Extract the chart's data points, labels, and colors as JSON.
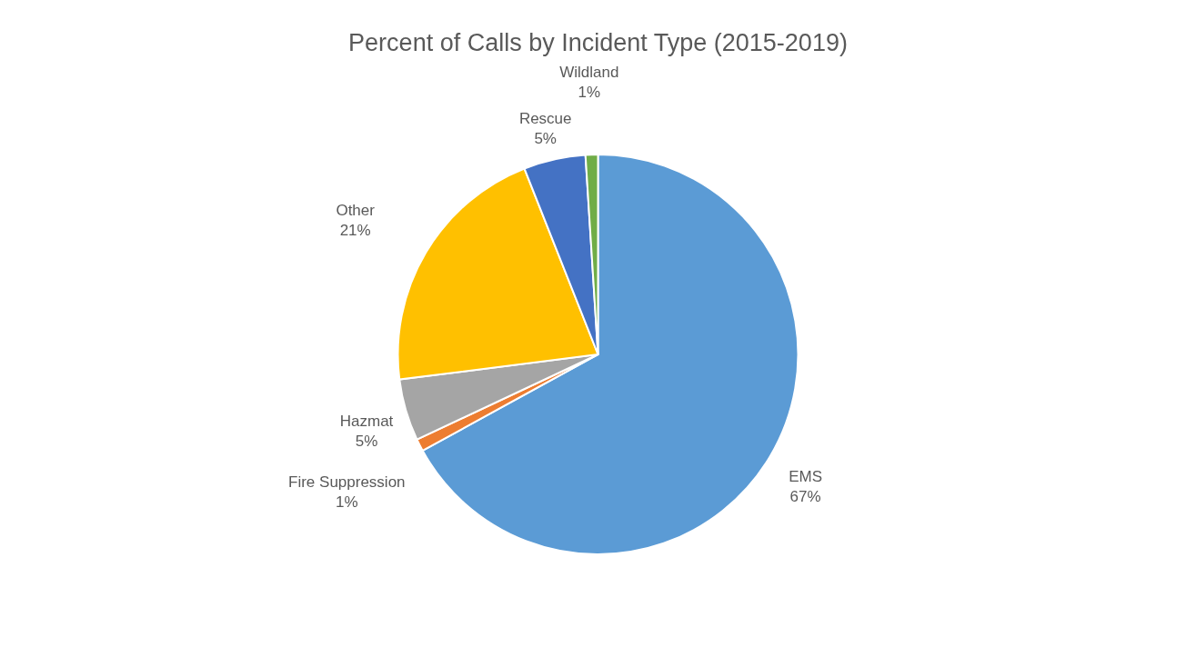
{
  "chart_data": {
    "type": "pie",
    "title": "Percent of Calls by Incident Type (2015-2019)",
    "categories": [
      "EMS",
      "Fire Suppression",
      "Hazmat",
      "Other",
      "Rescue",
      "Wildland"
    ],
    "values": [
      67,
      1,
      5,
      21,
      5,
      1
    ],
    "value_labels": [
      "67%",
      "1%",
      "5%",
      "21%",
      "5%",
      "1%"
    ],
    "colors": [
      "#5b9bd5",
      "#ed7d31",
      "#a5a5a5",
      "#ffc000",
      "#4472c4",
      "#70ad47"
    ]
  }
}
